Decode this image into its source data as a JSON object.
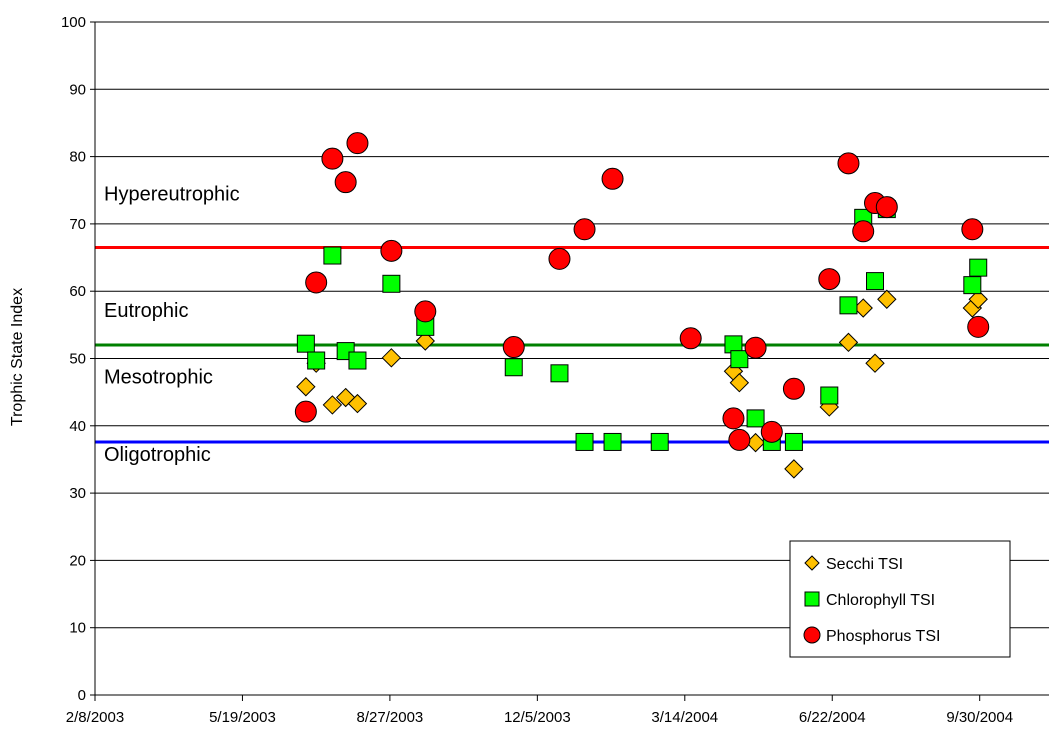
{
  "chart_data": {
    "type": "scatter",
    "ylabel": "Trophic State Index",
    "xlabel": "",
    "ylim": [
      0,
      100
    ],
    "xlim": [
      "2/8/2003",
      "11/16/2004"
    ],
    "y_ticks": [
      "0",
      "10",
      "20",
      "30",
      "40",
      "50",
      "60",
      "70",
      "80",
      "90",
      "100"
    ],
    "x_ticks": [
      "2/8/2003",
      "5/19/2003",
      "8/27/2003",
      "12/5/2003",
      "3/14/2004",
      "6/22/2004",
      "9/30/2004"
    ],
    "grid": "horizontal",
    "legend_position": "bottom-right",
    "thresholds": [
      {
        "value": 66.5,
        "color": "#ff0000"
      },
      {
        "value": 52,
        "color": "#008000"
      },
      {
        "value": 37.6,
        "color": "#0000ff"
      }
    ],
    "zones": [
      {
        "label": "Hypereutrophic",
        "y": 73.5
      },
      {
        "label": "Eutrophic",
        "y": 56.2
      },
      {
        "label": "Mesotrophic",
        "y": 46.3
      },
      {
        "label": "Oligotrophic",
        "y": 34.8
      }
    ],
    "series": [
      {
        "name": "Secchi TSI",
        "marker": "diamond",
        "color": "#ffc000",
        "points": [
          {
            "x": "2003-07-01",
            "y": 45.8
          },
          {
            "x": "2003-07-08",
            "y": 49.3
          },
          {
            "x": "2003-07-19",
            "y": 43.1
          },
          {
            "x": "2003-07-28",
            "y": 44.2
          },
          {
            "x": "2003-08-05",
            "y": 43.3
          },
          {
            "x": "2003-08-28",
            "y": 50.1
          },
          {
            "x": "2003-09-20",
            "y": 52.6
          },
          {
            "x": "2004-04-16",
            "y": 48.1
          },
          {
            "x": "2004-04-20",
            "y": 46.4
          },
          {
            "x": "2004-05-01",
            "y": 37.5
          },
          {
            "x": "2004-05-27",
            "y": 33.6
          },
          {
            "x": "2004-06-20",
            "y": 42.8
          },
          {
            "x": "2004-07-03",
            "y": 52.4
          },
          {
            "x": "2004-07-13",
            "y": 57.5
          },
          {
            "x": "2004-07-21",
            "y": 49.3
          },
          {
            "x": "2004-07-29",
            "y": 58.8
          },
          {
            "x": "2004-09-25",
            "y": 57.5
          },
          {
            "x": "2004-09-29",
            "y": 58.8
          }
        ]
      },
      {
        "name": "Chlorophyll TSI",
        "marker": "square",
        "color": "#00ff00",
        "points": [
          {
            "x": "2003-07-01",
            "y": 52.2
          },
          {
            "x": "2003-07-08",
            "y": 49.7
          },
          {
            "x": "2003-07-19",
            "y": 65.3
          },
          {
            "x": "2003-07-28",
            "y": 51.1
          },
          {
            "x": "2003-08-05",
            "y": 49.7
          },
          {
            "x": "2003-08-28",
            "y": 61.1
          },
          {
            "x": "2003-09-20",
            "y": 54.7
          },
          {
            "x": "2003-11-19",
            "y": 48.7
          },
          {
            "x": "2003-12-20",
            "y": 47.8
          },
          {
            "x": "2004-01-06",
            "y": 37.6
          },
          {
            "x": "2004-01-25",
            "y": 37.6
          },
          {
            "x": "2004-02-26",
            "y": 37.6
          },
          {
            "x": "2004-04-16",
            "y": 52.1
          },
          {
            "x": "2004-04-20",
            "y": 49.9
          },
          {
            "x": "2004-05-01",
            "y": 41.1
          },
          {
            "x": "2004-05-12",
            "y": 37.6
          },
          {
            "x": "2004-05-27",
            "y": 37.6
          },
          {
            "x": "2004-06-20",
            "y": 44.5
          },
          {
            "x": "2004-07-03",
            "y": 57.9
          },
          {
            "x": "2004-07-13",
            "y": 70.9
          },
          {
            "x": "2004-07-21",
            "y": 61.5
          },
          {
            "x": "2004-07-29",
            "y": 72.2
          },
          {
            "x": "2004-09-25",
            "y": 60.9
          },
          {
            "x": "2004-09-29",
            "y": 63.5
          }
        ]
      },
      {
        "name": "Phosphorus TSI",
        "marker": "circle",
        "color": "#ff0000",
        "points": [
          {
            "x": "2003-07-01",
            "y": 42.1
          },
          {
            "x": "2003-07-08",
            "y": 61.3
          },
          {
            "x": "2003-07-19",
            "y": 79.7
          },
          {
            "x": "2003-07-28",
            "y": 76.2
          },
          {
            "x": "2003-08-05",
            "y": 82.0
          },
          {
            "x": "2003-08-28",
            "y": 66.0
          },
          {
            "x": "2003-09-20",
            "y": 57.0
          },
          {
            "x": "2003-11-19",
            "y": 51.7
          },
          {
            "x": "2003-12-20",
            "y": 64.8
          },
          {
            "x": "2004-01-06",
            "y": 69.2
          },
          {
            "x": "2004-01-25",
            "y": 76.7
          },
          {
            "x": "2004-03-18",
            "y": 53.0
          },
          {
            "x": "2004-04-16",
            "y": 41.1
          },
          {
            "x": "2004-04-20",
            "y": 37.9
          },
          {
            "x": "2004-05-01",
            "y": 51.6
          },
          {
            "x": "2004-05-12",
            "y": 39.1
          },
          {
            "x": "2004-05-27",
            "y": 45.5
          },
          {
            "x": "2004-06-20",
            "y": 61.8
          },
          {
            "x": "2004-07-03",
            "y": 79.0
          },
          {
            "x": "2004-07-13",
            "y": 68.9
          },
          {
            "x": "2004-07-21",
            "y": 73.1
          },
          {
            "x": "2004-07-29",
            "y": 72.5
          },
          {
            "x": "2004-09-25",
            "y": 69.2
          },
          {
            "x": "2004-09-29",
            "y": 54.7
          }
        ]
      }
    ]
  }
}
